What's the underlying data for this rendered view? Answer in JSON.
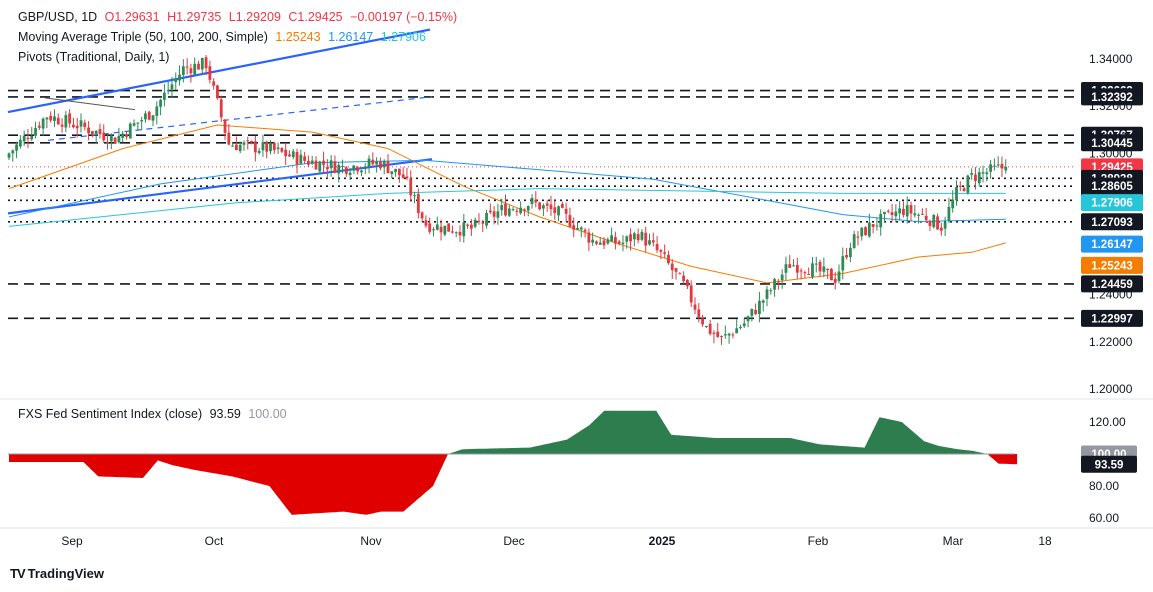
{
  "header": {
    "symbol": "GBP/USD, 1D",
    "ohlc": {
      "o": "O1.29631",
      "h": "H1.29735",
      "l": "L1.29209",
      "c": "C1.29425",
      "chg": "−0.00197 (−0.15%)"
    },
    "ma_label": "Moving Average Triple (50, 100, 200, Simple)",
    "ma_values": [
      "1.25243",
      "1.26147",
      "1.27906"
    ],
    "pivots_label": "Pivots (Traditional, Daily, 1)"
  },
  "indicator": {
    "label": "FXS Fed Sentiment Index (close)",
    "value": "93.59",
    "ref": "100.00"
  },
  "brand": "TradingView",
  "colors": {
    "up": "#2e8b57",
    "down": "#e0393e",
    "ma50": "#f57c00",
    "ma100": "#2196f3",
    "ma200": "#26c6da",
    "trend": "#2962ff",
    "pos_fill": "#2e7d4f",
    "neg_fill": "#e00000"
  },
  "chart_data": [
    {
      "type": "candlestick",
      "title": "GBP/USD, 1D",
      "x_tick_labels": [
        "Sep",
        "Oct",
        "Nov",
        "Dec",
        "2025",
        "Feb",
        "Mar",
        "18"
      ],
      "ylim": [
        1.19,
        1.35
      ],
      "y_tick_labels": [
        "1.34000",
        "1.32000",
        "1.30000",
        "1.28000",
        "1.26000",
        "1.24000",
        "1.22000",
        "1.20000"
      ],
      "price_badges": [
        {
          "label": "1.32663",
          "value": 1.32663,
          "kind": "pivot"
        },
        {
          "label": "1.32392",
          "value": 1.32392,
          "kind": "pivot"
        },
        {
          "label": "1.30767",
          "value": 1.30767,
          "kind": "pivot"
        },
        {
          "label": "1.30445",
          "value": 1.30445,
          "kind": "pivot"
        },
        {
          "label": "1.29425",
          "value": 1.29425,
          "kind": "last"
        },
        {
          "label": "1.28938",
          "value": 1.28938,
          "kind": "pivot"
        },
        {
          "label": "1.28605",
          "value": 1.28605,
          "kind": "pivot"
        },
        {
          "label": "1.28007",
          "value": 1.28007,
          "kind": "pivot"
        },
        {
          "label": "1.27906",
          "value": 1.27906,
          "kind": "ma200"
        },
        {
          "label": "1.27093",
          "value": 1.27093,
          "kind": "pivot"
        },
        {
          "label": "1.26147",
          "value": 1.26147,
          "kind": "ma100"
        },
        {
          "label": "1.25243",
          "value": 1.25243,
          "kind": "ma50"
        },
        {
          "label": "1.24459",
          "value": 1.24459,
          "kind": "pivot"
        },
        {
          "label": "1.22997",
          "value": 1.22997,
          "kind": "pivot"
        }
      ],
      "close_anchors": [
        [
          0,
          1.3
        ],
        [
          10,
          1.316
        ],
        [
          18,
          1.312
        ],
        [
          28,
          1.306
        ],
        [
          38,
          1.318
        ],
        [
          46,
          1.336
        ],
        [
          52,
          1.338
        ],
        [
          58,
          1.304
        ],
        [
          68,
          1.302
        ],
        [
          78,
          1.297
        ],
        [
          88,
          1.294
        ],
        [
          98,
          1.296
        ],
        [
          104,
          1.29
        ],
        [
          110,
          1.27
        ],
        [
          116,
          1.268
        ],
        [
          122,
          1.268
        ],
        [
          130,
          1.276
        ],
        [
          138,
          1.279
        ],
        [
          146,
          1.274
        ],
        [
          154,
          1.263
        ],
        [
          162,
          1.262
        ],
        [
          166,
          1.266
        ],
        [
          172,
          1.257
        ],
        [
          178,
          1.244
        ],
        [
          184,
          1.226
        ],
        [
          188,
          1.221
        ],
        [
          194,
          1.228
        ],
        [
          200,
          1.24
        ],
        [
          206,
          1.253
        ],
        [
          212,
          1.251
        ],
        [
          218,
          1.247
        ],
        [
          222,
          1.262
        ],
        [
          228,
          1.27
        ],
        [
          236,
          1.276
        ],
        [
          242,
          1.273
        ],
        [
          246,
          1.269
        ],
        [
          250,
          1.283
        ],
        [
          254,
          1.29
        ],
        [
          260,
          1.293
        ],
        [
          263,
          1.29425
        ]
      ],
      "ma": [
        {
          "name": "MA 50",
          "points": [
            [
              0,
              1.285
            ],
            [
              30,
              1.302
            ],
            [
              55,
              1.312
            ],
            [
              80,
              1.309
            ],
            [
              100,
              1.302
            ],
            [
              120,
              1.286
            ],
            [
              140,
              1.273
            ],
            [
              160,
              1.262
            ],
            [
              180,
              1.252
            ],
            [
              200,
              1.245
            ],
            [
              220,
              1.249
            ],
            [
              240,
              1.256
            ],
            [
              254,
              1.258
            ],
            [
              263,
              1.262
            ]
          ]
        },
        {
          "name": "MA 100",
          "points": [
            [
              0,
              1.273
            ],
            [
              40,
              1.287
            ],
            [
              80,
              1.296
            ],
            [
              110,
              1.297
            ],
            [
              140,
              1.293
            ],
            [
              170,
              1.289
            ],
            [
              200,
              1.28
            ],
            [
              220,
              1.274
            ],
            [
              240,
              1.271
            ],
            [
              263,
              1.272
            ]
          ]
        },
        {
          "name": "MA 200",
          "points": [
            [
              0,
              1.269
            ],
            [
              60,
              1.279
            ],
            [
              100,
              1.283
            ],
            [
              140,
              1.285
            ],
            [
              180,
              1.284
            ],
            [
              220,
              1.283
            ],
            [
              263,
              1.283
            ]
          ]
        }
      ],
      "pivot_levels": [
        {
          "value": 1.32663,
          "style": "dashed"
        },
        {
          "value": 1.32392,
          "style": "dashed"
        },
        {
          "value": 1.30767,
          "style": "dashed"
        },
        {
          "value": 1.30445,
          "style": "dashed"
        },
        {
          "value": 1.28938,
          "style": "dotted"
        },
        {
          "value": 1.28605,
          "style": "dotted"
        },
        {
          "value": 1.28007,
          "style": "dotted"
        },
        {
          "value": 1.27093,
          "style": "dotted"
        },
        {
          "value": 1.24459,
          "style": "dashed"
        },
        {
          "value": 1.22997,
          "style": "dashed"
        }
      ],
      "last_price": 1.29425
    },
    {
      "type": "area",
      "title": "FXS Fed Sentiment Index (close)",
      "ylim": [
        55,
        130
      ],
      "baseline": 100,
      "y_tick_labels": [
        "120.00",
        "100.00",
        "80.00",
        "60.00"
      ],
      "value_badges": [
        "100.00",
        "93.59"
      ],
      "points": [
        [
          0,
          95
        ],
        [
          20,
          95
        ],
        [
          24,
          86
        ],
        [
          36,
          85
        ],
        [
          40,
          96
        ],
        [
          44,
          93
        ],
        [
          50,
          90
        ],
        [
          60,
          86
        ],
        [
          70,
          80
        ],
        [
          76,
          62
        ],
        [
          90,
          64
        ],
        [
          96,
          62
        ],
        [
          100,
          64
        ],
        [
          106,
          64
        ],
        [
          114,
          80
        ],
        [
          118,
          100
        ],
        [
          122,
          103
        ],
        [
          140,
          104
        ],
        [
          150,
          109
        ],
        [
          156,
          118
        ],
        [
          160,
          127
        ],
        [
          174,
          127
        ],
        [
          178,
          112
        ],
        [
          190,
          110
        ],
        [
          210,
          110
        ],
        [
          218,
          106
        ],
        [
          230,
          104
        ],
        [
          234,
          123
        ],
        [
          240,
          120
        ],
        [
          246,
          108
        ],
        [
          250,
          105
        ],
        [
          255,
          103
        ],
        [
          259,
          102
        ],
        [
          263,
          100
        ],
        [
          266,
          94
        ],
        [
          271,
          93.59
        ]
      ]
    }
  ]
}
